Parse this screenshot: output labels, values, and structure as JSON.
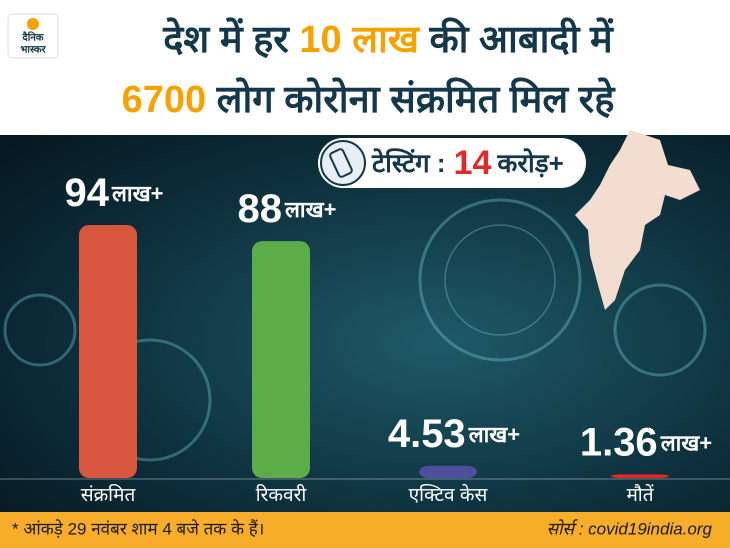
{
  "logo": {
    "line1": "दैनिक",
    "line2": "भास्कर"
  },
  "chart_data": {
    "type": "bar",
    "title_line1": [
      "देश में हर ",
      "10 लाख",
      " की आबादी में"
    ],
    "title_line2": [
      "6700",
      " लोग कोरोना संक्रमित मिल रहे"
    ],
    "testing": {
      "label": "टेस्टिंग :",
      "value": 14,
      "unit": "करोड़+"
    },
    "categories": [
      "संक्रमित",
      "रिकवरी",
      "एक्टिव केस",
      "मौतें"
    ],
    "values": [
      94,
      88,
      4.53,
      1.36
    ],
    "value_unit": "लाख+",
    "colors": [
      "#d9573f",
      "#5cad4a",
      "#4e4f9c",
      "#e02a2a"
    ]
  },
  "footer": {
    "note": "* आंकड़े 29 नवंबर शाम 4 बजे तक के हैं।",
    "source": "सोर्स : covid19india.org"
  }
}
